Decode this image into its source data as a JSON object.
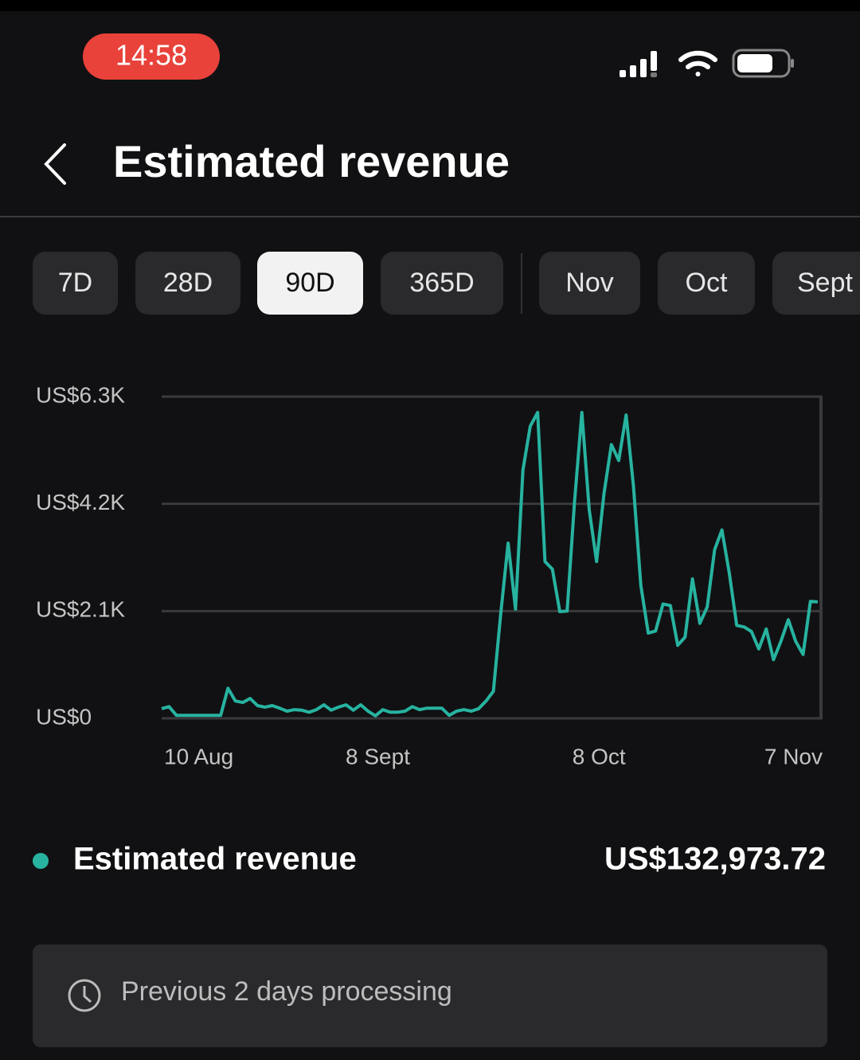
{
  "status_bar": {
    "time": "14:58"
  },
  "header": {
    "title": "Estimated revenue"
  },
  "tabs": {
    "items": [
      "7D",
      "28D",
      "90D",
      "365D",
      "Nov",
      "Oct",
      "Sept"
    ],
    "selected": 2
  },
  "chart_data": {
    "type": "line",
    "categories": [
      "10 Aug",
      null,
      null,
      null,
      null,
      null,
      null,
      null,
      null,
      null,
      null,
      null,
      null,
      null,
      null,
      null,
      null,
      null,
      null,
      null,
      null,
      null,
      null,
      null,
      null,
      null,
      null,
      null,
      null,
      "8 Sept",
      null,
      null,
      null,
      null,
      null,
      null,
      null,
      null,
      null,
      null,
      null,
      null,
      null,
      null,
      null,
      null,
      null,
      null,
      null,
      null,
      null,
      null,
      null,
      null,
      null,
      null,
      null,
      null,
      null,
      "8 Oct",
      null,
      null,
      null,
      null,
      null,
      null,
      null,
      null,
      null,
      null,
      null,
      null,
      null,
      null,
      null,
      null,
      null,
      null,
      null,
      null,
      null,
      null,
      null,
      null,
      null,
      null,
      null,
      null,
      null,
      "7 Nov"
    ],
    "series": [
      {
        "name": "Estimated revenue",
        "color": "#27b3a0",
        "values": [
          190,
          230,
          60,
          60,
          60,
          60,
          60,
          60,
          60,
          590,
          340,
          310,
          390,
          250,
          220,
          250,
          200,
          140,
          170,
          160,
          120,
          170,
          265,
          160,
          220,
          265,
          160,
          265,
          140,
          50,
          170,
          120,
          120,
          140,
          230,
          170,
          200,
          200,
          200,
          60,
          140,
          170,
          140,
          190,
          340,
          530,
          2060,
          3430,
          2140,
          4860,
          5720,
          5990,
          3070,
          2920,
          2090,
          2100,
          4240,
          5990,
          4080,
          3070,
          4400,
          5360,
          5050,
          5940,
          4550,
          2600,
          1670,
          1710,
          2240,
          2210,
          1430,
          1590,
          2730,
          1860,
          2180,
          3300,
          3690,
          2840,
          1820,
          1790,
          1700,
          1360,
          1750,
          1150,
          1510,
          1930,
          1510,
          1250,
          2290,
          2280
        ]
      }
    ],
    "ylim": [
      0,
      6300
    ],
    "yticks": [
      {
        "value": 0,
        "label": "US$0"
      },
      {
        "value": 2100,
        "label": "US$2.1K"
      },
      {
        "value": 4200,
        "label": "US$4.2K"
      },
      {
        "value": 6300,
        "label": "US$6.3K"
      }
    ],
    "grid": true
  },
  "summary": {
    "total": "US$132,973.72"
  },
  "notice": {
    "text": "Previous 2 days processing"
  }
}
